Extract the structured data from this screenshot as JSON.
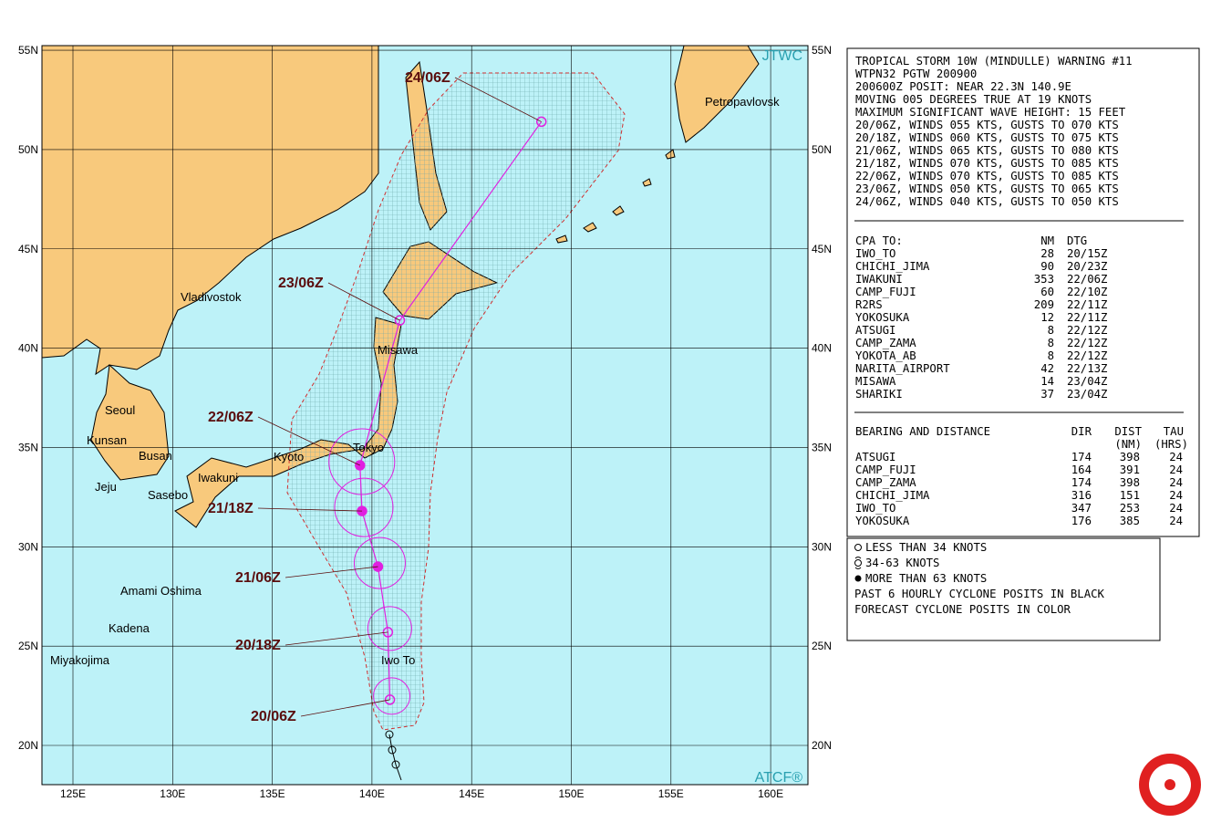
{
  "map": {
    "lat_ticks": [
      {
        "value": 55,
        "label": "55N"
      },
      {
        "value": 50,
        "label": "50N"
      },
      {
        "value": 45,
        "label": "45N"
      },
      {
        "value": 40,
        "label": "40N"
      },
      {
        "value": 35,
        "label": "35N"
      },
      {
        "value": 30,
        "label": "30N"
      },
      {
        "value": 25,
        "label": "25N"
      },
      {
        "value": 20,
        "label": "20N"
      }
    ],
    "lon_ticks": [
      {
        "value": 125,
        "label": "125E"
      },
      {
        "value": 130,
        "label": "130E"
      },
      {
        "value": 135,
        "label": "135E"
      },
      {
        "value": 140,
        "label": "140E"
      },
      {
        "value": 145,
        "label": "145E"
      },
      {
        "value": 150,
        "label": "150E"
      },
      {
        "value": 155,
        "label": "155E"
      },
      {
        "value": 160,
        "label": "160E"
      }
    ],
    "places": [
      "Petropavlovsk",
      "Vladivostok",
      "Misawa",
      "Seoul",
      "Kunsan",
      "Busan",
      "Tokyo",
      "Kyoto",
      "Iwakuni",
      "Jeju",
      "Sasebo",
      "Amami Oshima",
      "Kadena",
      "Miyakojima",
      "Iwo To"
    ],
    "top_badge": "JTWC",
    "bottom_badge": "ATCF®",
    "track": [
      {
        "label": "20/06Z",
        "lat": 22.3,
        "lon": 140.9
      },
      {
        "label": "20/18Z",
        "lat": 25.7,
        "lon": 140.8
      },
      {
        "label": "21/06Z",
        "lat": 29.0,
        "lon": 140.3
      },
      {
        "label": "21/18Z",
        "lat": 31.8,
        "lon": 139.5
      },
      {
        "label": "22/06Z",
        "lat": 34.1,
        "lon": 139.4
      },
      {
        "label": "23/06Z",
        "lat": 41.4,
        "lon": 141.4
      },
      {
        "label": "24/06Z",
        "lat": 51.4,
        "lon": 148.5
      }
    ]
  },
  "warning": {
    "lines": [
      "TROPICAL STORM 10W (MINDULLE) WARNING #11",
      "WTPN32 PGTW 200900",
      "200600Z POSIT: NEAR 22.3N 140.9E",
      "MOVING 005 DEGREES TRUE AT 19 KNOTS",
      "MAXIMUM SIGNIFICANT WAVE HEIGHT: 15 FEET",
      "20/06Z, WINDS 055 KTS, GUSTS TO 070 KTS",
      "20/18Z, WINDS 060 KTS, GUSTS TO 075 KTS",
      "21/06Z, WINDS 065 KTS, GUSTS TO 080 KTS",
      "21/18Z, WINDS 070 KTS, GUSTS TO 085 KTS",
      "22/06Z, WINDS 070 KTS, GUSTS TO 085 KTS",
      "23/06Z, WINDS 050 KTS, GUSTS TO 065 KTS",
      "24/06Z, WINDS 040 KTS, GUSTS TO 050 KTS"
    ],
    "cpa_header": [
      "CPA TO:",
      "NM",
      "DTG"
    ],
    "cpa_rows": [
      [
        "IWO_TO",
        28,
        "20/15Z"
      ],
      [
        "CHICHI_JIMA",
        90,
        "20/23Z"
      ],
      [
        "IWAKUNI",
        353,
        "22/06Z"
      ],
      [
        "CAMP_FUJI",
        60,
        "22/10Z"
      ],
      [
        "R2RS",
        209,
        "22/11Z"
      ],
      [
        "YOKOSUKA",
        12,
        "22/11Z"
      ],
      [
        "ATSUGI",
        8,
        "22/12Z"
      ],
      [
        "CAMP_ZAMA",
        8,
        "22/12Z"
      ],
      [
        "YOKOTA_AB",
        8,
        "22/12Z"
      ],
      [
        "NARITA_AIRPORT",
        42,
        "22/13Z"
      ],
      [
        "MISAWA",
        14,
        "23/04Z"
      ],
      [
        "SHARIKI",
        37,
        "23/04Z"
      ]
    ],
    "bearing_header": [
      "BEARING AND DISTANCE",
      "DIR",
      "DIST",
      "TAU"
    ],
    "bearing_units": [
      "(NM)",
      "(HRS)"
    ],
    "bearing_rows": [
      [
        "ATSUGI",
        174,
        398,
        24
      ],
      [
        "CAMP_FUJI",
        164,
        391,
        24
      ],
      [
        "CAMP_ZAMA",
        174,
        398,
        24
      ],
      [
        "CHICHI_JIMA",
        316,
        151,
        24
      ],
      [
        "IWO_TO",
        347,
        253,
        24
      ],
      [
        "YOKOSUKA",
        176,
        385,
        24
      ]
    ]
  },
  "legend": [
    "LESS THAN 34 KNOTS",
    "34-63 KNOTS",
    "MORE THAN 63 KNOTS",
    "PAST 6 HOURLY CYCLONE POSITS IN BLACK",
    "FORECAST CYCLONE POSITS IN COLOR"
  ]
}
